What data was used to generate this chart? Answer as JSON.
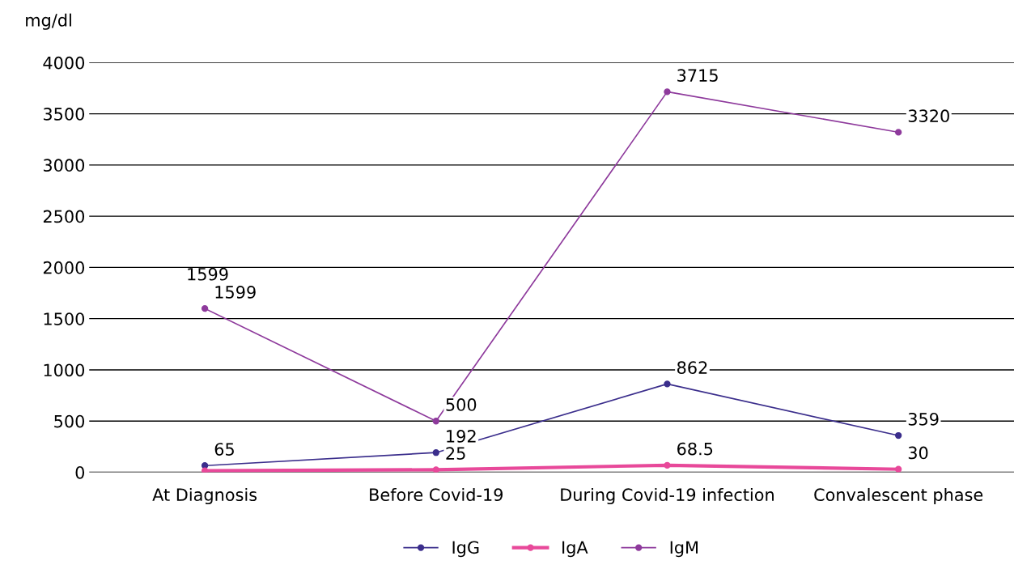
{
  "chart_data": {
    "type": "line",
    "ylabel": "mg/dl",
    "categories": [
      "At Diagnosis",
      "Before Covid-19",
      "During Covid-19 infection",
      "Convalescent phase"
    ],
    "series": [
      {
        "name": "IgG",
        "color": "#3b2e8c",
        "values": [
          65,
          192,
          862,
          359
        ],
        "value_labels": [
          "65",
          "192",
          "862",
          "359"
        ]
      },
      {
        "name": "IgA",
        "color": "#e8499a",
        "values": [
          15,
          25,
          68.5,
          30
        ],
        "value_labels": [
          null,
          "25",
          "68.5",
          "30"
        ]
      },
      {
        "name": "IgM",
        "color": "#8e3a9c",
        "values": [
          1599,
          500,
          3715,
          3320
        ],
        "value_labels": [
          "1599",
          "500",
          "3715",
          "3320"
        ]
      }
    ],
    "annotations": [
      "1599"
    ],
    "ylim": [
      0,
      4000
    ],
    "yticks": [
      0,
      500,
      1000,
      1500,
      2000,
      2500,
      3000,
      3500,
      4000
    ],
    "grid": "y",
    "legend": "bottom",
    "marker": "circle",
    "line_style": "solid"
  }
}
